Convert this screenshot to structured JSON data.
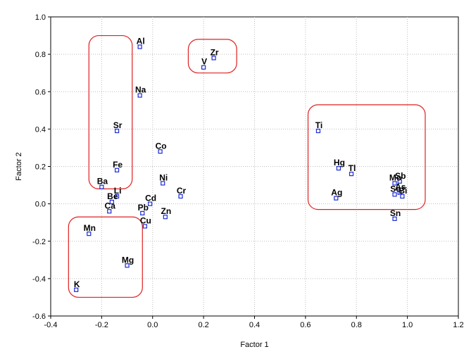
{
  "chart_data": {
    "type": "scatter",
    "title": "",
    "xlabel": "Factor 1",
    "ylabel": "Factor 2",
    "xlim": [
      -0.4,
      1.2
    ],
    "ylim": [
      -0.6,
      1.0
    ],
    "x_ticks": [
      -0.4,
      -0.2,
      0.0,
      0.2,
      0.4,
      0.6,
      0.8,
      1.0,
      1.2
    ],
    "y_ticks": [
      -0.6,
      -0.4,
      -0.2,
      0.0,
      0.2,
      0.4,
      0.6,
      0.8,
      1.0
    ],
    "x_tick_labels": [
      "-0.4",
      "-0.2",
      "0.0",
      "0.2",
      "0.4",
      "0.6",
      "0.8",
      "1.0",
      "1.2"
    ],
    "y_tick_labels": [
      "-0.6",
      "-0.4",
      "-0.2",
      "0.0",
      "0.2",
      "0.4",
      "0.6",
      "0.8",
      "1.0"
    ],
    "grid": true,
    "point_color": "#1a2bd6",
    "highlight_color": "#e02020",
    "points": [
      {
        "label": "Al",
        "x": -0.05,
        "y": 0.84
      },
      {
        "label": "Zr",
        "x": 0.24,
        "y": 0.78
      },
      {
        "label": "V",
        "x": 0.2,
        "y": 0.73
      },
      {
        "label": "Na",
        "x": -0.05,
        "y": 0.58
      },
      {
        "label": "Sr",
        "x": -0.14,
        "y": 0.39
      },
      {
        "label": "Co",
        "x": 0.03,
        "y": 0.28
      },
      {
        "label": "Fe",
        "x": -0.14,
        "y": 0.18
      },
      {
        "label": "Ni",
        "x": 0.04,
        "y": 0.11
      },
      {
        "label": "Ba",
        "x": -0.2,
        "y": 0.09
      },
      {
        "label": "Li",
        "x": -0.14,
        "y": 0.04
      },
      {
        "label": "Be",
        "x": -0.16,
        "y": 0.01
      },
      {
        "label": "Ca",
        "x": -0.17,
        "y": -0.04
      },
      {
        "label": "Cr",
        "x": 0.11,
        "y": 0.04
      },
      {
        "label": "Cd",
        "x": -0.01,
        "y": 0.0
      },
      {
        "label": "Pb",
        "x": -0.04,
        "y": -0.05
      },
      {
        "label": "Zn",
        "x": 0.05,
        "y": -0.07
      },
      {
        "label": "Cu",
        "x": -0.03,
        "y": -0.12
      },
      {
        "label": "Mn",
        "x": -0.25,
        "y": -0.16
      },
      {
        "label": "Mg",
        "x": -0.1,
        "y": -0.33
      },
      {
        "label": "K",
        "x": -0.3,
        "y": -0.46
      },
      {
        "label": "Ti",
        "x": 0.65,
        "y": 0.39
      },
      {
        "label": "Hg",
        "x": 0.73,
        "y": 0.19
      },
      {
        "label": "Tl",
        "x": 0.78,
        "y": 0.16
      },
      {
        "label": "Ag",
        "x": 0.72,
        "y": 0.03
      },
      {
        "label": "Mo",
        "x": 0.95,
        "y": 0.11
      },
      {
        "label": "Sb",
        "x": 0.97,
        "y": 0.12
      },
      {
        "label": "Se",
        "x": 0.95,
        "y": 0.05
      },
      {
        "label": "As",
        "x": 0.97,
        "y": 0.06
      },
      {
        "label": "Bi",
        "x": 0.98,
        "y": 0.04
      },
      {
        "label": "Sn",
        "x": 0.95,
        "y": -0.08
      }
    ],
    "highlight_boxes": [
      {
        "name": "box-al-fe",
        "x_range": [
          -0.25,
          -0.08
        ],
        "y_range": [
          0.08,
          0.9
        ]
      },
      {
        "name": "box-zr-v",
        "x_range": [
          0.14,
          0.33
        ],
        "y_range": [
          0.7,
          0.88
        ]
      },
      {
        "name": "box-ti-sn",
        "x_range": [
          0.61,
          1.07
        ],
        "y_range": [
          -0.03,
          0.53
        ]
      },
      {
        "name": "box-mn-k",
        "x_range": [
          -0.33,
          -0.04
        ],
        "y_range": [
          -0.5,
          -0.07
        ]
      }
    ]
  }
}
